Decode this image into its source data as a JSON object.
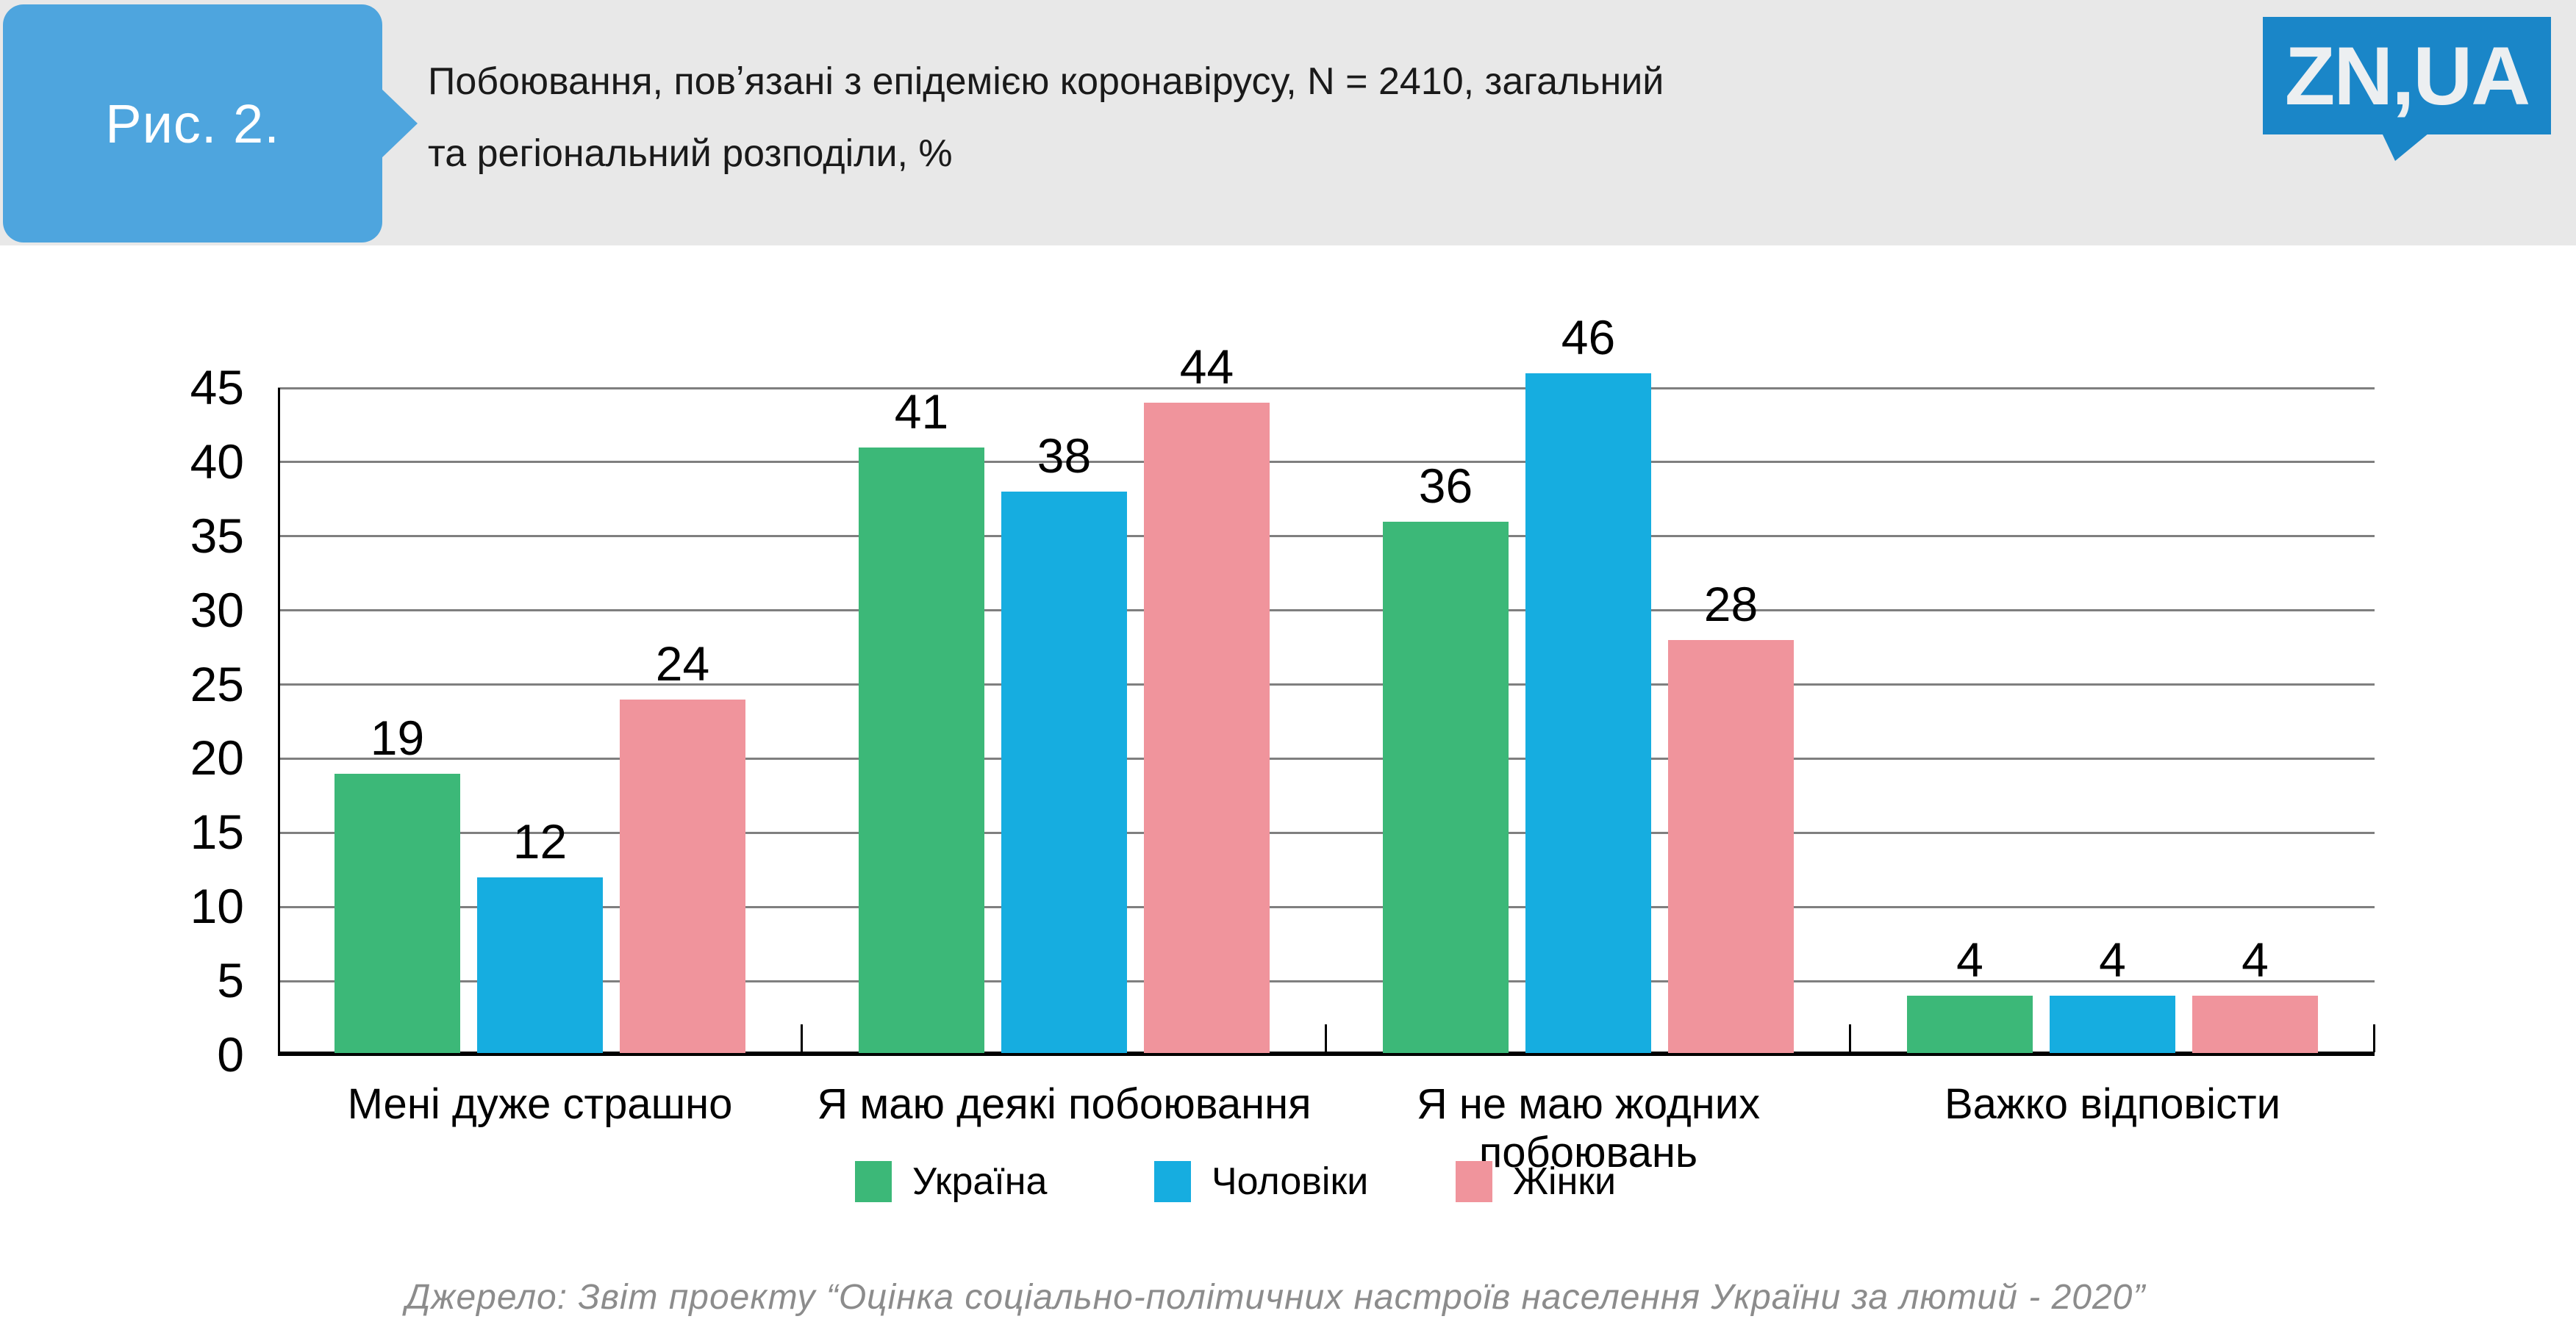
{
  "header": {
    "figure_label": "Рис. 2.",
    "title": "Побоювання, повʼязані з епідемією коронавірусу, N = 2410, загальний\nта регіональний розподіли, %"
  },
  "logo": {
    "text": "ZN,UA"
  },
  "source": {
    "text": "Джерело: Звіт проекту “Оцінка соціально-політичних настроїв населення України за лютий - 2020”"
  },
  "colors": {
    "header_band": "#e8e8e8",
    "badge_blue": "#4ea5de",
    "logo_blue": "#1a86c8",
    "series_green": "#3cb878",
    "series_blue": "#16ade0",
    "series_pink": "#f0949c",
    "gridline_gray": "#7f7f7f",
    "source_gray": "#8c8c8c"
  },
  "chart_data": {
    "type": "bar",
    "title": "",
    "xlabel": "",
    "ylabel": "",
    "categories": [
      "Мені дуже страшно",
      "Я маю деякі побоювання",
      "Я не маю жодних побоювань",
      "Важко відповісти"
    ],
    "series": [
      {
        "name": "Україна",
        "color": "#3cb878",
        "values": [
          19,
          41,
          36,
          4
        ]
      },
      {
        "name": "Чоловіки",
        "color": "#16ade0",
        "values": [
          12,
          38,
          46,
          4
        ]
      },
      {
        "name": "Жінки",
        "color": "#f0949c",
        "values": [
          24,
          44,
          28,
          4
        ]
      }
    ],
    "ylim": [
      0,
      45
    ],
    "ytick_step": 5,
    "grid": true,
    "legend_position": "bottom"
  }
}
